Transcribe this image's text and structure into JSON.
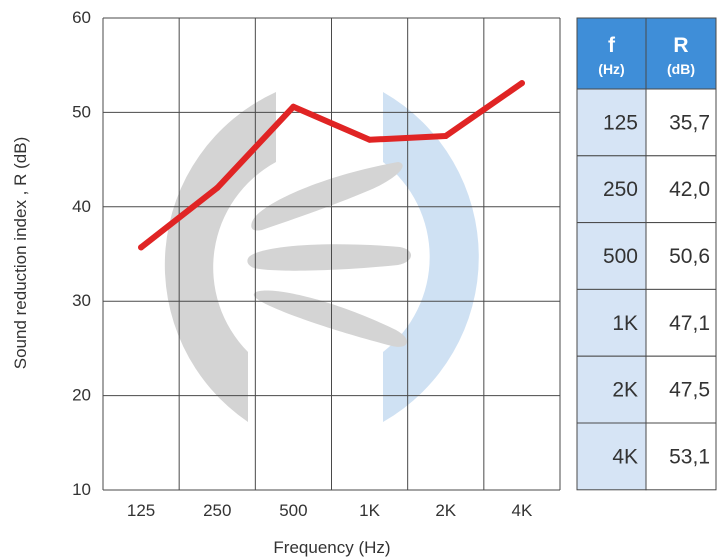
{
  "chart_data": {
    "type": "line",
    "categories": [
      "125",
      "250",
      "500",
      "1K",
      "2K",
      "4K"
    ],
    "series": [
      {
        "values": [
          35.7,
          42.0,
          50.6,
          47.1,
          47.5,
          53.1
        ],
        "color": "#e02424"
      }
    ],
    "ylim": [
      10,
      60
    ],
    "yticks": [
      10,
      20,
      30,
      40,
      50,
      60
    ],
    "xlabel": "Frequency (Hz)",
    "ylabel": "Sound reduction index , R (dB)",
    "grid": true,
    "legend": "none"
  },
  "table": {
    "headers": [
      {
        "main": "f",
        "unit": "(Hz)"
      },
      {
        "main": "R",
        "unit": "(dB)"
      }
    ],
    "rows": [
      [
        "125",
        "35,7"
      ],
      [
        "250",
        "42,0"
      ],
      [
        "500",
        "50,6"
      ],
      [
        "1K",
        "47,1"
      ],
      [
        "2K",
        "47,5"
      ],
      [
        "4K",
        "53,1"
      ]
    ]
  },
  "colors": {
    "line": "#e02424",
    "grid": "#4a4a4a",
    "header_bg": "#3f8ed8",
    "freq_col_bg": "#d6e4f5",
    "watermark_gray": "#d4d4d4",
    "watermark_blue": "#cfe1f3"
  }
}
